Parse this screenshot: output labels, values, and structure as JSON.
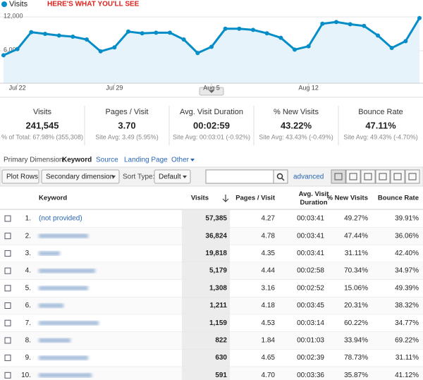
{
  "chart_data": {
    "type": "line",
    "annotation": "HERE'S WHAT YOU'LL SEE",
    "categories": [
      null,
      "Jul 22",
      null,
      null,
      null,
      null,
      null,
      null,
      "Jul 29",
      null,
      null,
      null,
      null,
      null,
      null,
      "Aug 5",
      null,
      null,
      null,
      null,
      null,
      null,
      "Aug 12",
      null,
      null,
      null,
      null,
      null,
      null,
      null,
      null
    ],
    "series": [
      {
        "name": "Visits",
        "color": "#058dc7",
        "values": [
          5200,
          6300,
          9300,
          9000,
          8700,
          8500,
          8000,
          5900,
          6600,
          9400,
          9100,
          9200,
          9200,
          8000,
          5600,
          6700,
          9900,
          9900,
          9700,
          9100,
          8300,
          6200,
          6800,
          10800,
          11100,
          10700,
          10400,
          8700,
          6500,
          7700,
          11800
        ]
      }
    ],
    "ylim": [
      0,
      12000
    ],
    "yticks": [
      {
        "value": 6000,
        "label": "6,000"
      },
      {
        "value": 12000,
        "label": "12,000"
      }
    ],
    "grid": true
  },
  "summary": [
    {
      "label": "Visits",
      "value": "241,545",
      "sub": "% of Total: 67.98% (355,308)"
    },
    {
      "label": "Pages / Visit",
      "value": "3.70",
      "sub": "Site Avg: 3.49 (5.95%)"
    },
    {
      "label": "Avg. Visit Duration",
      "value": "00:02:59",
      "sub": "Site Avg: 00:03:01 (-0.92%)"
    },
    {
      "label": "% New Visits",
      "value": "43.22%",
      "sub": "Site Avg: 43.43% (-0.49%)"
    },
    {
      "label": "Bounce Rate",
      "value": "47.11%",
      "sub": "Site Avg: 49.43% (-4.70%)"
    }
  ],
  "dimension": {
    "label": "Primary Dimension:",
    "active": "Keyword",
    "options": [
      "Source",
      "Landing Page",
      "Other"
    ]
  },
  "toolbar": {
    "plot_rows": "Plot Rows",
    "secondary": "Secondary dimension",
    "sort_label": "Sort Type:",
    "sort_value": "Default",
    "advanced": "advanced"
  },
  "table": {
    "headers": [
      "Keyword",
      "Visits",
      "Pages / Visit",
      "Avg. Visit Duration",
      "% New Visits",
      "Bounce Rate"
    ],
    "rows": [
      {
        "num": "1.",
        "keyword": "(not provided)",
        "cells": [
          "57,385",
          "4.27",
          "00:03:41",
          "49.27%",
          "39.91%"
        ]
      },
      {
        "num": "2.",
        "cells": [
          "36,824",
          "4.78",
          "00:03:41",
          "47.44%",
          "36.06%"
        ]
      },
      {
        "num": "3.",
        "cells": [
          "19,818",
          "4.35",
          "00:03:41",
          "31.11%",
          "42.40%"
        ]
      },
      {
        "num": "4.",
        "cells": [
          "5,179",
          "4.44",
          "00:02:58",
          "70.34%",
          "34.97%"
        ]
      },
      {
        "num": "5.",
        "cells": [
          "1,308",
          "3.16",
          "00:02:52",
          "15.06%",
          "49.39%"
        ]
      },
      {
        "num": "6.",
        "cells": [
          "1,211",
          "4.18",
          "00:03:45",
          "20.31%",
          "38.32%"
        ]
      },
      {
        "num": "7.",
        "cells": [
          "1,159",
          "4.53",
          "00:03:14",
          "60.22%",
          "34.77%"
        ]
      },
      {
        "num": "8.",
        "cells": [
          "822",
          "1.84",
          "00:01:03",
          "33.94%",
          "69.22%"
        ]
      },
      {
        "num": "9.",
        "cells": [
          "630",
          "4.65",
          "00:02:39",
          "78.73%",
          "31.11%"
        ]
      },
      {
        "num": "10.",
        "cells": [
          "591",
          "4.70",
          "00:03:36",
          "35.87%",
          "41.12%"
        ]
      }
    ]
  }
}
